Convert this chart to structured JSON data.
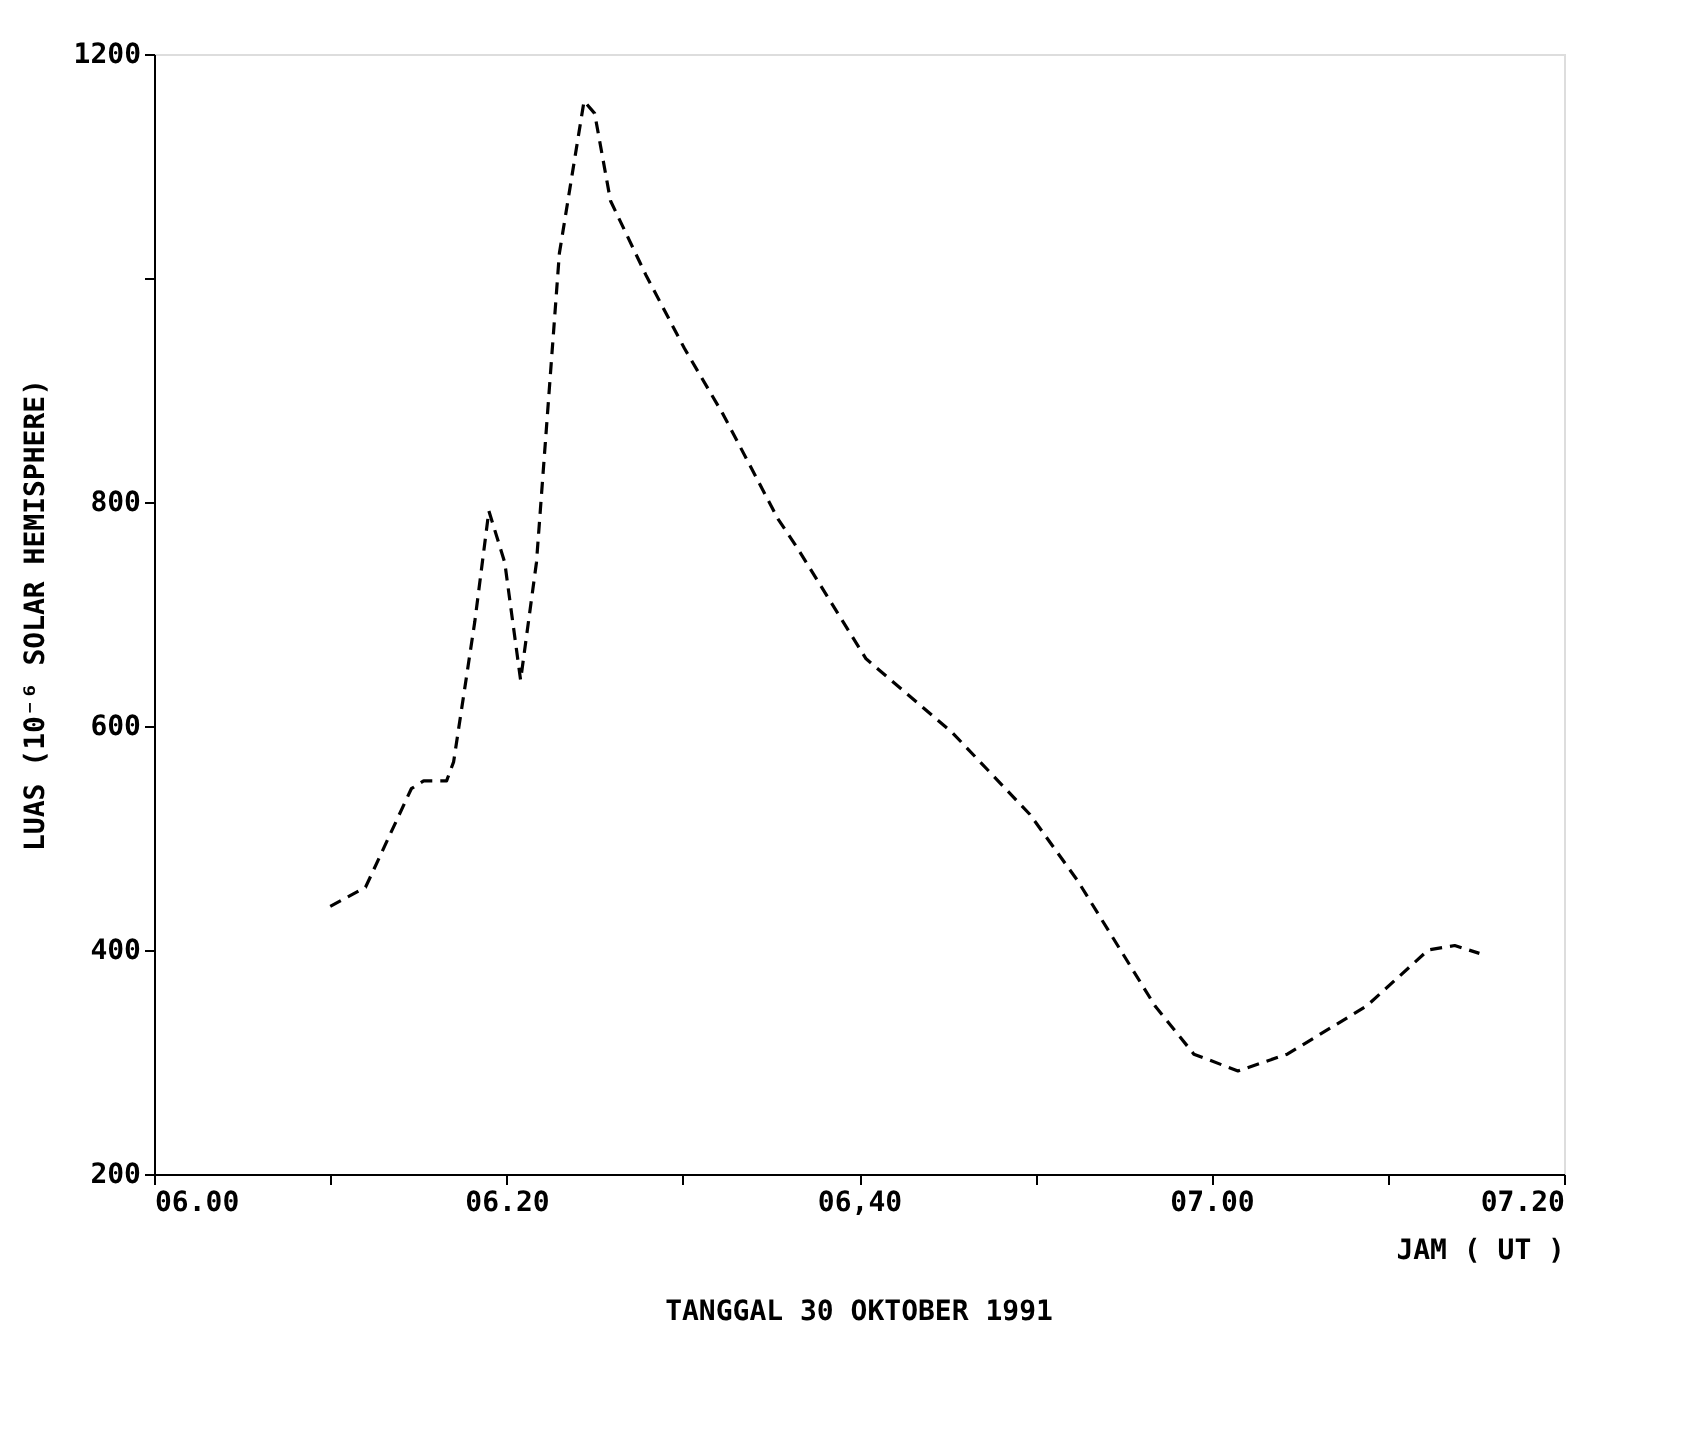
{
  "chart_data": {
    "type": "line",
    "xlabel": "JAM ( UT )",
    "ylabel": "LUAS (10⁻⁶ SOLAR HEMISPHERE)",
    "annotations": [
      "TANGGAL 30 OKTOBER 1991"
    ],
    "x": [
      "1991-10-30T06:10:00",
      "1991-10-30T06:12:00",
      "1991-10-30T06:14:36",
      "1991-10-30T06:15:18",
      "1991-10-30T06:16:36",
      "1991-10-30T06:17:00",
      "1991-10-30T06:18:12",
      "1991-10-30T06:19:00",
      "1991-10-30T06:19:54",
      "1991-10-30T06:20:48",
      "1991-10-30T06:21:42",
      "1991-10-30T06:23:00",
      "1991-10-30T06:24:24",
      "1991-10-30T06:25:00",
      "1991-10-30T06:25:54",
      "1991-10-30T06:27:54",
      "1991-10-30T06:30:06",
      "1991-10-30T06:32:18",
      "1991-10-30T06:35:24",
      "1991-10-30T06:36:30",
      "1991-10-30T06:40:24",
      "1991-10-30T06:45:18",
      "1991-10-30T06:49:42",
      "1991-10-30T06:52:24",
      "1991-10-30T06:56:48",
      "1991-10-30T06:59:00",
      "1991-10-30T07:01:30",
      "1991-10-30T07:04:18",
      "1991-10-30T07:08:48",
      "1991-10-30T07:12:18",
      "1991-10-30T07:13:48",
      "1991-10-30T07:15:12"
    ],
    "series": [
      {
        "color": "#000000",
        "values": [
          439,
          456,
          544,
          551,
          551,
          568,
          693,
          792,
          746,
          641,
          746,
          1022,
          1158,
          1147,
          1069,
          1003,
          937,
          878,
          785,
          759,
          660,
          594,
          521,
          462,
          350,
          307,
          292,
          307,
          350,
          400,
          404,
          397
        ]
      }
    ],
    "xlim": [
      "1991-10-30T06:00",
      "1991-10-30T07:20"
    ],
    "xticks": [
      {
        "value": "1991-10-30T06:00",
        "label": "06.00"
      },
      {
        "value": "1991-10-30T06:10",
        "label": null
      },
      {
        "value": "1991-10-30T06:20",
        "label": "06.20"
      },
      {
        "value": "1991-10-30T06:30",
        "label": null
      },
      {
        "value": "1991-10-30T06:40",
        "label": "06,40"
      },
      {
        "value": "1991-10-30T06:50",
        "label": null
      },
      {
        "value": "1991-10-30T07:00",
        "label": "07.00"
      },
      {
        "value": "1991-10-30T07:10",
        "label": null
      },
      {
        "value": "1991-10-30T07:20",
        "label": "07.20"
      }
    ],
    "ylim": [
      200,
      1200
    ],
    "yticks": [
      200,
      400,
      600,
      800,
      {
        "value": 1000,
        "label": null
      },
      1200
    ],
    "grid": false,
    "marker": "none",
    "line_style": "dashed"
  }
}
